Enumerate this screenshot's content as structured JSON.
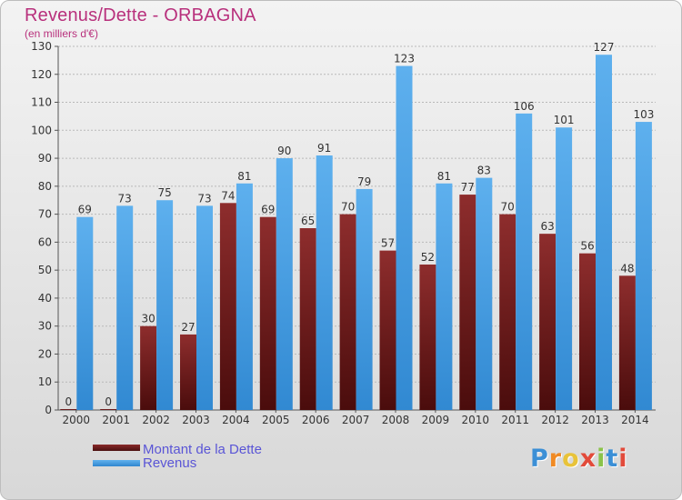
{
  "chart_data": {
    "type": "bar",
    "title": "Revenus/Dette - ORBAGNA",
    "subtitle": "(en milliers d'€)",
    "categories": [
      "2000",
      "2001",
      "2002",
      "2003",
      "2004",
      "2005",
      "2006",
      "2007",
      "2008",
      "2009",
      "2010",
      "2011",
      "2012",
      "2013",
      "2014"
    ],
    "series": [
      {
        "name": "Montant de la Dette",
        "color": "#7a1f1f",
        "values": [
          0,
          0,
          30,
          27,
          74,
          69,
          65,
          70,
          57,
          52,
          77,
          70,
          63,
          56,
          48
        ]
      },
      {
        "name": "Revenus",
        "color": "#4a9de0",
        "values": [
          69,
          73,
          75,
          73,
          81,
          90,
          91,
          79,
          123,
          81,
          83,
          106,
          101,
          127,
          103
        ]
      }
    ],
    "ylim": [
      0,
      130
    ],
    "yticks": [
      0,
      10,
      20,
      30,
      40,
      50,
      60,
      70,
      80,
      90,
      100,
      110,
      120,
      130
    ],
    "grid": true,
    "legend_position": "bottom-left"
  },
  "logo": {
    "text": "Proxiti"
  }
}
